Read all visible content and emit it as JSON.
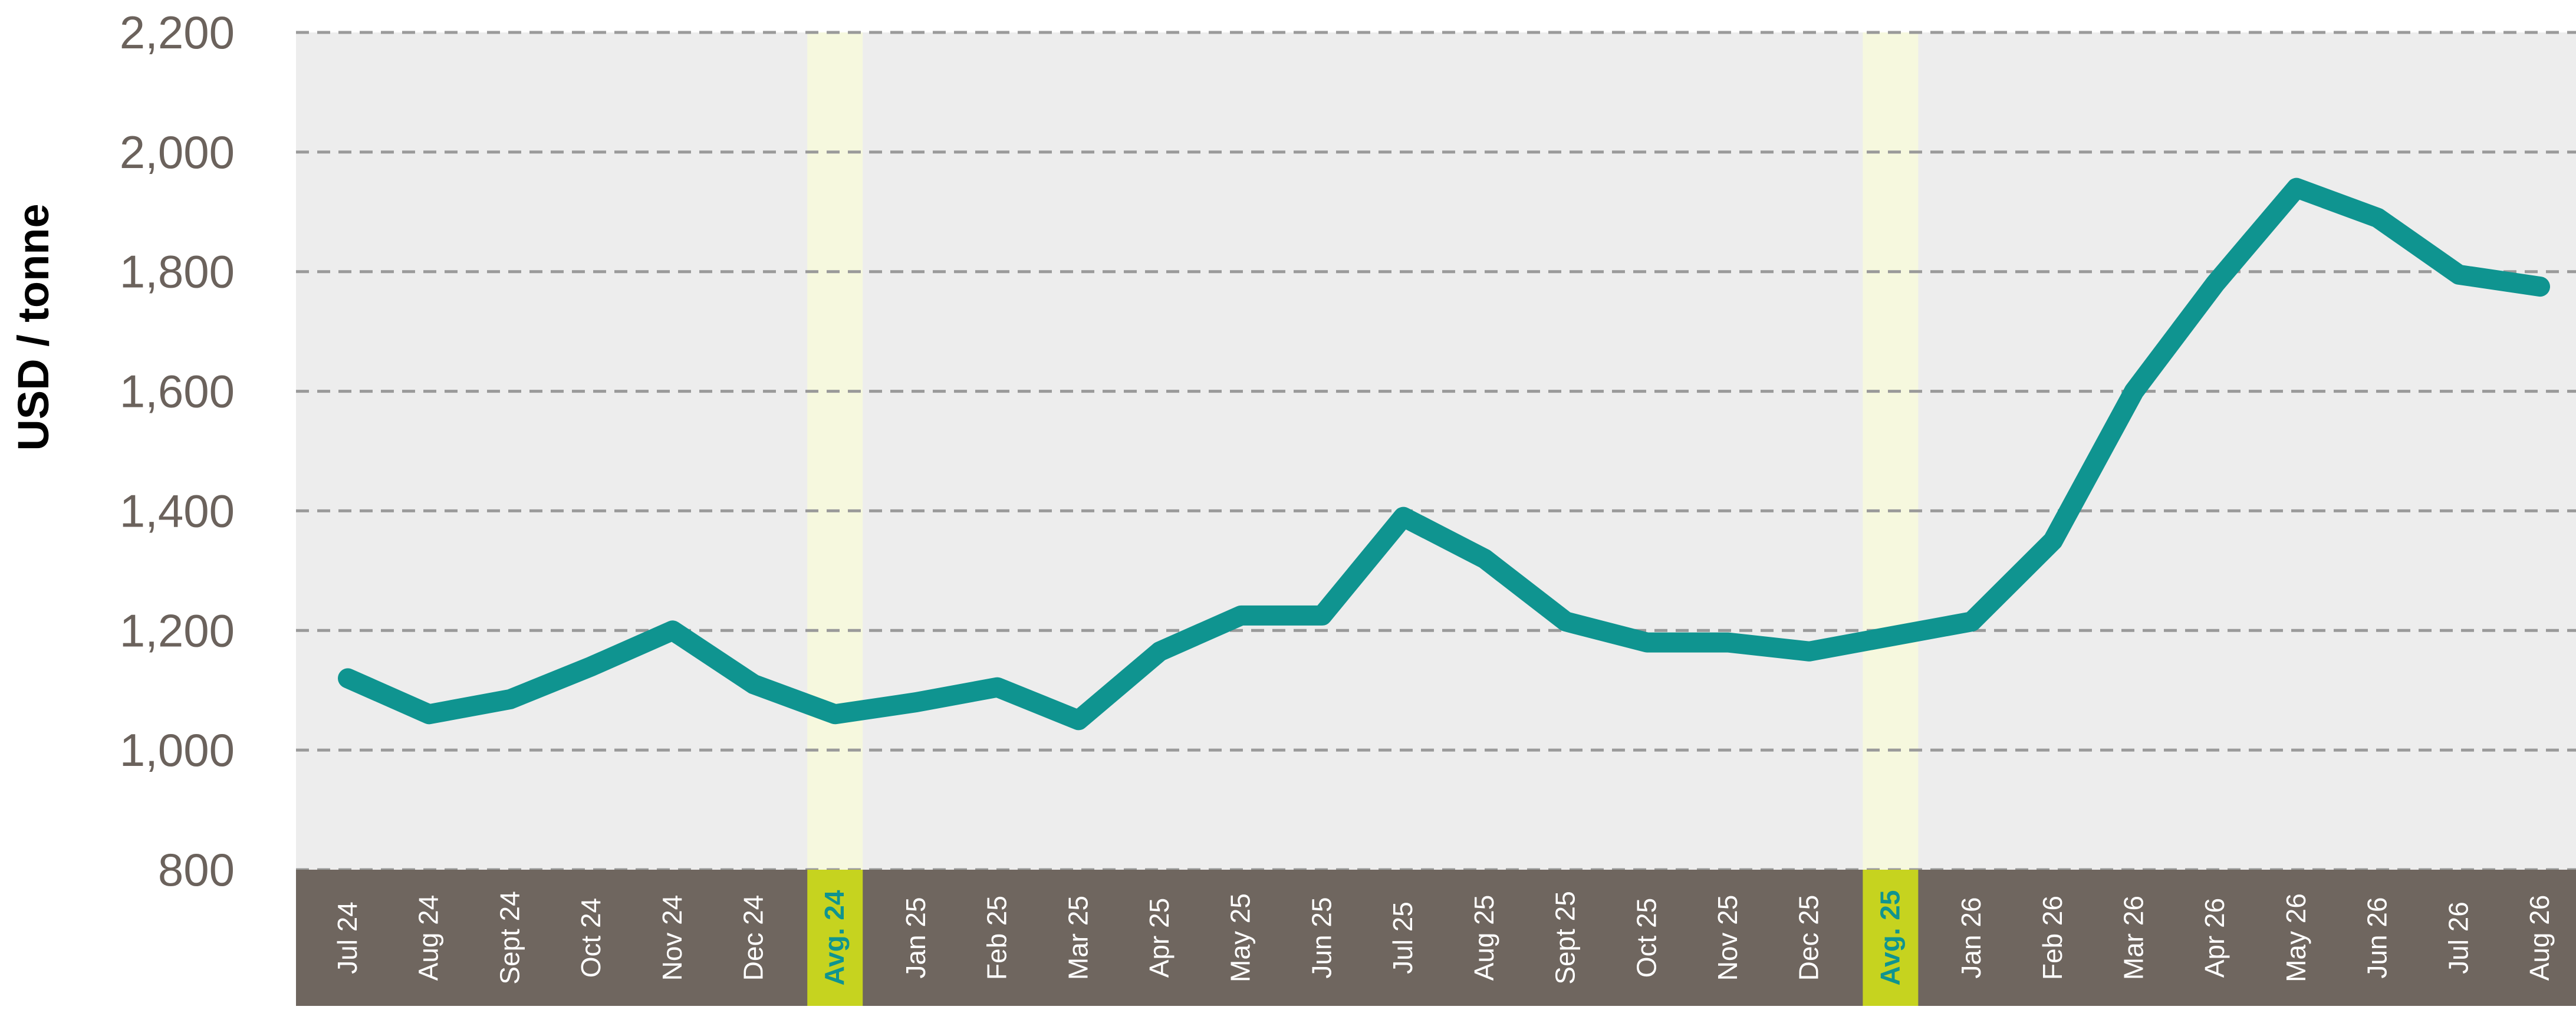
{
  "chart_data": {
    "type": "line",
    "ylabel": "USD / tonne",
    "xlabel": "",
    "title": "",
    "ylim": [
      800,
      2200
    ],
    "yticks": [
      800,
      1000,
      1200,
      1400,
      1600,
      1800,
      2000,
      2200
    ],
    "ytick_labels": [
      "800",
      "1,000",
      "1,200",
      "1,400",
      "1,600",
      "1,800",
      "2,000",
      "2,200"
    ],
    "grid": "horizontal dashed",
    "categories": [
      "Jul 24",
      "Aug 24",
      "Sept 24",
      "Oct 24",
      "Nov 24",
      "Dec 24",
      "Avg. 24",
      "Jan 25",
      "Feb 25",
      "Mar 25",
      "Apr 25",
      "May 25",
      "Jun 25",
      "Jul 25",
      "Aug 25",
      "Sept 25",
      "Oct 25",
      "Nov 25",
      "Dec 25",
      "Avg. 25",
      "Jan 26",
      "Feb 26",
      "Mar 26",
      "Apr 26",
      "May 26",
      "Jun 26",
      "Jul 26",
      "Aug 26"
    ],
    "highlight_categories": [
      "Avg. 24",
      "Avg. 25"
    ],
    "series": [
      {
        "values": [
          1120,
          1060,
          1085,
          1140,
          1200,
          1110,
          1060,
          1080,
          1105,
          1050,
          1165,
          1225,
          1225,
          1390,
          1320,
          1215,
          1180,
          1180,
          1165,
          1190,
          1215,
          1350,
          1600,
          1780,
          1940,
          1890,
          1795,
          1775
        ]
      }
    ],
    "colors": {
      "line": "#0f9490",
      "plot_background": "#ededed",
      "axis_band": "#6f665f",
      "axis_band_text": "#ffffff",
      "highlight_column": "#f6f8de",
      "highlight_label_bg": "#c6d31f",
      "highlight_label_text": "#0f9490",
      "grid": "#9a9a9a",
      "axis_text": "#6b625c"
    }
  }
}
